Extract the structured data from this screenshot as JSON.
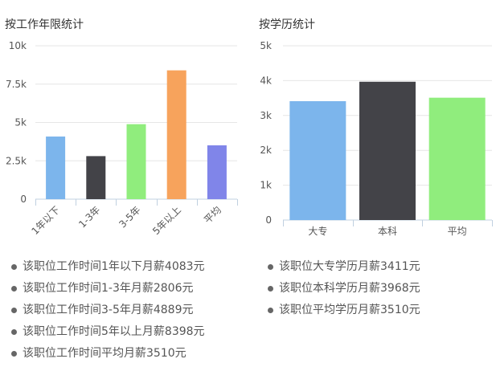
{
  "chart_data": [
    {
      "type": "bar",
      "title": "按工作年限统计",
      "categories": [
        "1年以下",
        "1-3年",
        "3-5年",
        "5年以上",
        "平均"
      ],
      "values": [
        4083,
        2806,
        4889,
        8398,
        3510
      ],
      "colors": [
        "#7cb5ec",
        "#434348",
        "#90ed7d",
        "#f7a35c",
        "#8085e9"
      ],
      "yticks": [
        "0",
        "2.5k",
        "5k",
        "7.5k",
        "10k"
      ],
      "ylim": [
        0,
        10000
      ],
      "xlabel": "",
      "ylabel": "",
      "grid": true,
      "xtick_rotation": "diagonal"
    },
    {
      "type": "bar",
      "title": "按学历统计",
      "categories": [
        "大专",
        "本科",
        "平均"
      ],
      "values": [
        3411,
        3968,
        3510
      ],
      "colors": [
        "#7cb5ec",
        "#434348",
        "#90ed7d"
      ],
      "yticks": [
        "0",
        "1k",
        "2k",
        "3k",
        "4k",
        "5k"
      ],
      "ylim": [
        0,
        5000
      ],
      "xlabel": "",
      "ylabel": "",
      "grid": true,
      "xtick_rotation": "none"
    }
  ],
  "stats_left": [
    "该职位工作时间1年以下月薪4083元",
    "该职位工作时间1-3年月薪2806元",
    "该职位工作时间3-5年月薪4889元",
    "该职位工作时间5年以上月薪8398元",
    "该职位工作时间平均月薪3510元"
  ],
  "stats_right": [
    "该职位大专学历月薪3411元",
    "该职位本科学历月薪3968元",
    "该职位平均学历月薪3510元"
  ]
}
